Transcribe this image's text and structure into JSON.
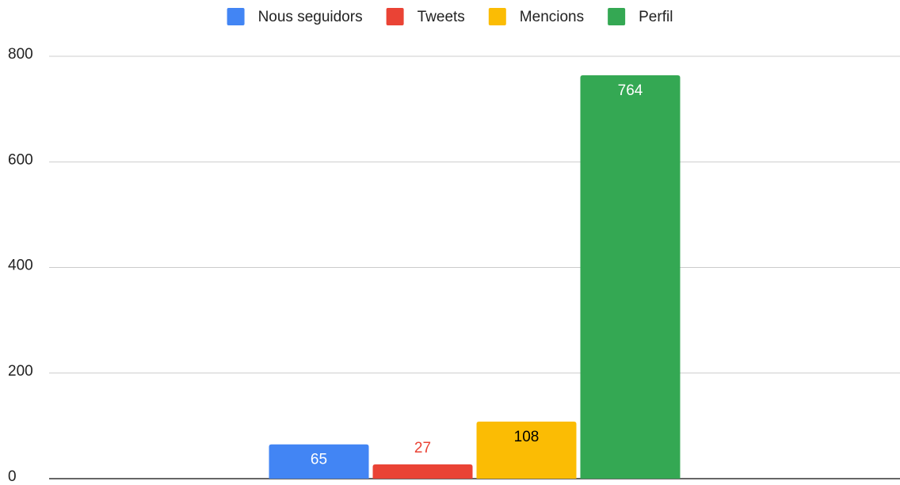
{
  "chart_data": {
    "type": "bar",
    "categories": [
      null
    ],
    "series": [
      {
        "name": "Nous seguidors",
        "color": "#4285f4",
        "values": [
          65
        ]
      },
      {
        "name": "Tweets",
        "color": "#ea4335",
        "values": [
          27
        ]
      },
      {
        "name": "Mencions",
        "color": "#fbbc04",
        "values": [
          108
        ]
      },
      {
        "name": "Perfil",
        "color": "#34a853",
        "values": [
          764
        ]
      }
    ],
    "ylim": [
      0,
      800
    ],
    "yticks": [
      0,
      200,
      400,
      600,
      800
    ],
    "grid": true,
    "legend": "top"
  }
}
